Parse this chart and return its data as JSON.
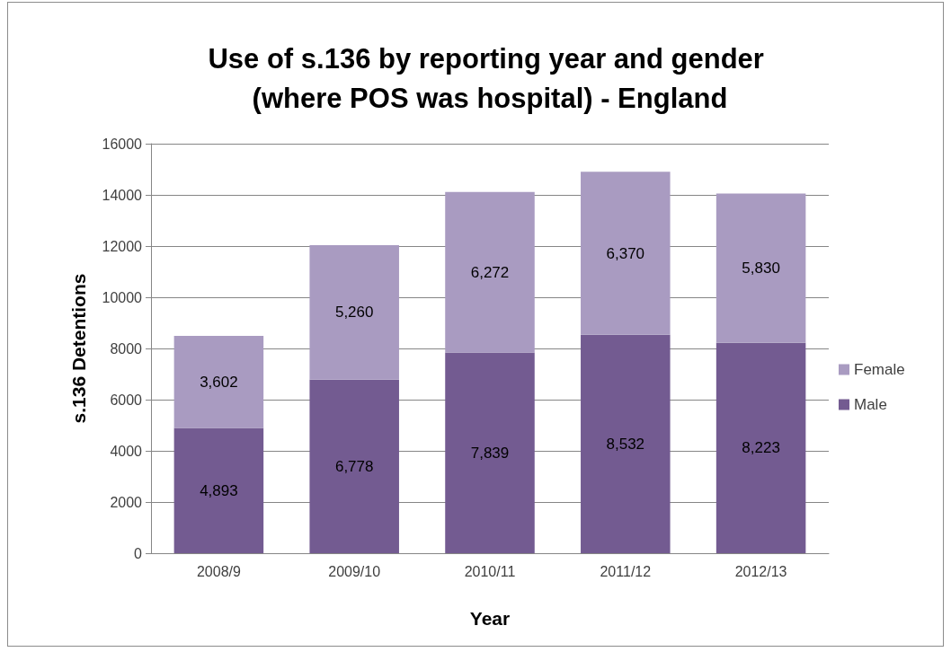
{
  "chart_data": {
    "type": "bar",
    "title": "Use of s.136 by reporting year and gender (where POS was hospital) - England",
    "xlabel": "Year",
    "ylabel": "s.136 Detentions",
    "categories": [
      "2008/9",
      "2009/10",
      "2010/11",
      "2011/12",
      "2012/13"
    ],
    "stacked": true,
    "series": [
      {
        "name": "Male",
        "color": "#735b91",
        "values": [
          4893,
          6778,
          7839,
          8532,
          8223
        ],
        "value_labels": [
          "4,893",
          "6,778",
          "7,839",
          "8,532",
          "8,223"
        ]
      },
      {
        "name": "Female",
        "color": "#a99bc1",
        "values": [
          3602,
          5260,
          6272,
          6370,
          5830
        ],
        "value_labels": [
          "3,602",
          "5,260",
          "6,272",
          "6,370",
          "5,830"
        ]
      }
    ],
    "ylim": [
      0,
      16000
    ],
    "yticks": [
      0,
      2000,
      4000,
      6000,
      8000,
      10000,
      12000,
      14000,
      16000
    ],
    "grid": "y",
    "legend": "right"
  }
}
